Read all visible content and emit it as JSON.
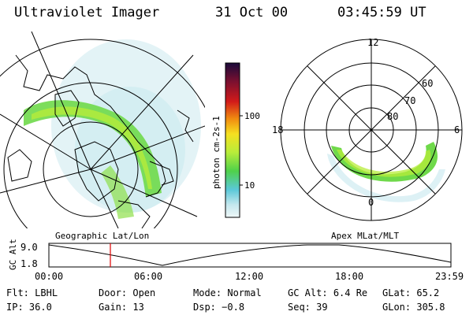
{
  "header": {
    "instrument": "Ultraviolet Imager",
    "date": "31 Oct 00",
    "time": "03:45:59 UT"
  },
  "panels": {
    "geographic_label": "Geographic Lat/Lon",
    "apex_label": "Apex MLat/MLT"
  },
  "colorbar": {
    "unit_label": "photon cm-2s-1",
    "ticks": [
      "100",
      "10"
    ]
  },
  "polar_plot": {
    "mlt_labels": [
      "12",
      "18",
      "6",
      "0"
    ],
    "lat_labels": [
      "60",
      "70",
      "80"
    ]
  },
  "altitude_plot": {
    "ylabel": "GC Alt",
    "yticks": [
      "9.0",
      "1.8"
    ],
    "xticks": [
      "00:00",
      "06:00",
      "12:00",
      "18:00",
      "23:59"
    ],
    "marker_time": "03:46"
  },
  "status": {
    "row1": [
      {
        "key": "Flt:",
        "value": "LBHL"
      },
      {
        "key": "Door:",
        "value": "Open"
      },
      {
        "key": "Mode:",
        "value": "Normal"
      },
      {
        "key": "GC Alt:",
        "value": "6.4 Re"
      },
      {
        "key": "GLat:",
        "value": "65.2"
      }
    ],
    "row2": [
      {
        "key": "IP:",
        "value": "36.0"
      },
      {
        "key": "Gain:",
        "value": "13"
      },
      {
        "key": "Dsp:",
        "value": "−0.8"
      },
      {
        "key": "Seq:",
        "value": "39"
      },
      {
        "key": "GLon:",
        "value": "305.8"
      }
    ]
  }
}
